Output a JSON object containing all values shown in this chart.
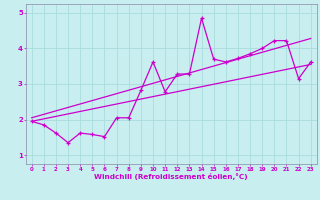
{
  "title": "",
  "xlabel": "Windchill (Refroidissement éolien,°C)",
  "ylabel": "",
  "bg_color": "#c8eef0",
  "line_color": "#cc00cc",
  "grid_color": "#aadddd",
  "spine_color": "#8888aa",
  "xlim": [
    -0.5,
    23.5
  ],
  "ylim": [
    0.75,
    5.25
  ],
  "yticks": [
    1,
    2,
    3,
    4,
    5
  ],
  "xticks": [
    0,
    1,
    2,
    3,
    4,
    5,
    6,
    7,
    8,
    9,
    10,
    11,
    12,
    13,
    14,
    15,
    16,
    17,
    18,
    19,
    20,
    21,
    22,
    23
  ],
  "data_x": [
    0,
    1,
    2,
    3,
    4,
    5,
    6,
    7,
    8,
    9,
    10,
    11,
    12,
    13,
    14,
    15,
    16,
    17,
    18,
    19,
    20,
    21,
    22,
    23
  ],
  "data_y": [
    1.95,
    1.85,
    1.62,
    1.35,
    1.62,
    1.58,
    1.52,
    2.05,
    2.05,
    2.82,
    3.62,
    2.78,
    3.28,
    3.28,
    4.85,
    3.7,
    3.62,
    3.72,
    3.85,
    4.0,
    4.22,
    4.22,
    3.15,
    3.62
  ],
  "trend1_x": [
    0,
    23
  ],
  "trend1_y": [
    1.95,
    3.55
  ],
  "trend2_x": [
    0,
    23
  ],
  "trend2_y": [
    2.05,
    4.28
  ]
}
